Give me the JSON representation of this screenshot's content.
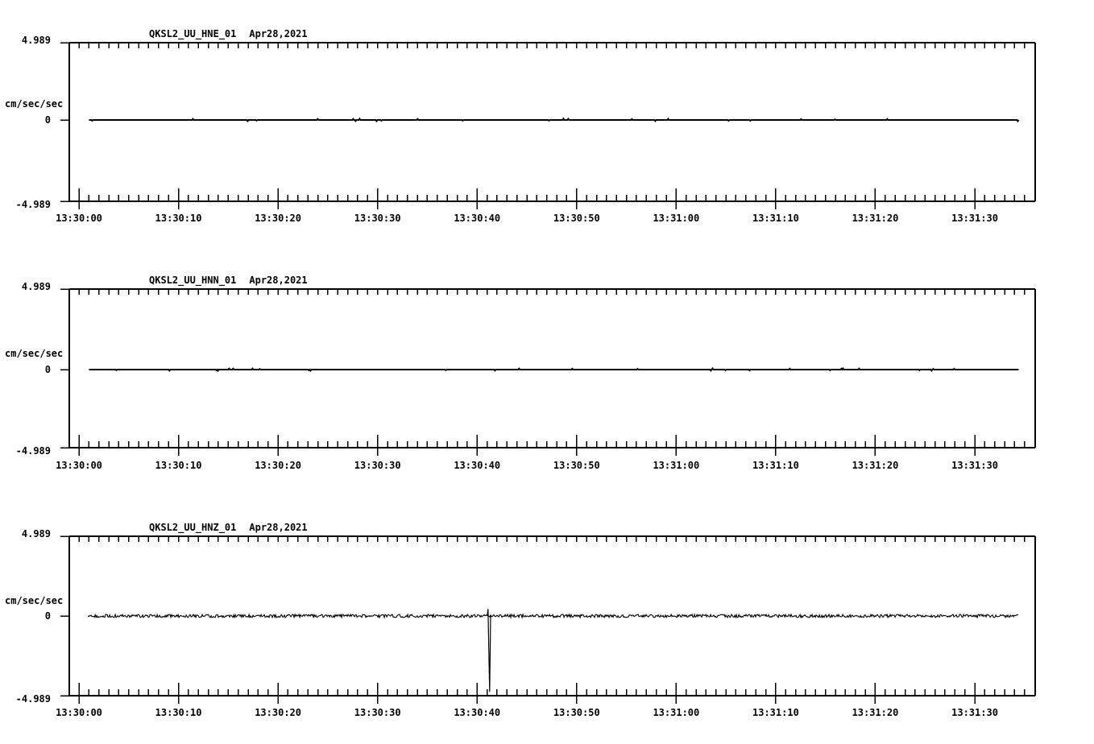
{
  "page": {
    "background_color": "#ffffff",
    "ink_color": "#000000"
  },
  "chart_data": [
    {
      "type": "line",
      "station_channel": "QKSL2_UU_HNE_01",
      "date": "Apr28,2021",
      "y_axis": {
        "unit": "cm/sec/sec",
        "max_label": "4.989",
        "zero_label": "0",
        "min_label": "-4.989",
        "ylim": [
          -4.989,
          4.989
        ]
      },
      "x_axis": {
        "tick_labels": [
          "13:30:00",
          "13:30:10",
          "13:30:20",
          "13:30:30",
          "13:30:40",
          "13:30:50",
          "13:31:00",
          "13:31:10",
          "13:31:20",
          "13:31:30"
        ],
        "minor_step_s": 1,
        "major_step_s": 10,
        "range_s": [
          -1,
          96.1
        ]
      },
      "trace": {
        "baseline_value": 0,
        "start_s": 1.0,
        "end_s": 94.4,
        "noise_amp": 0.01,
        "blip_prob": 0.02,
        "spikes": []
      }
    },
    {
      "type": "line",
      "station_channel": "QKSL2_UU_HNN_01",
      "date": "Apr28,2021",
      "y_axis": {
        "unit": "cm/sec/sec",
        "max_label": "4.989",
        "zero_label": "0",
        "min_label": "-4.989",
        "ylim": [
          -4.989,
          4.989
        ]
      },
      "x_axis": {
        "tick_labels": [
          "13:30:00",
          "13:30:10",
          "13:30:20",
          "13:30:30",
          "13:30:40",
          "13:30:50",
          "13:31:00",
          "13:31:10",
          "13:31:20",
          "13:31:30"
        ],
        "minor_step_s": 1,
        "major_step_s": 10,
        "range_s": [
          -1,
          96.1
        ]
      },
      "trace": {
        "baseline_value": 0,
        "start_s": 1.0,
        "end_s": 94.4,
        "noise_amp": 0.01,
        "blip_prob": 0.03,
        "spikes": []
      }
    },
    {
      "type": "line",
      "station_channel": "QKSL2_UU_HNZ_01",
      "date": "Apr28,2021",
      "y_axis": {
        "unit": "cm/sec/sec",
        "max_label": "4.989",
        "zero_label": "0",
        "min_label": "-4.989",
        "ylim": [
          -4.989,
          4.989
        ]
      },
      "x_axis": {
        "tick_labels": [
          "13:30:00",
          "13:30:10",
          "13:30:20",
          "13:30:30",
          "13:30:40",
          "13:30:50",
          "13:31:00",
          "13:31:10",
          "13:31:20",
          "13:31:30"
        ],
        "minor_step_s": 1,
        "major_step_s": 10,
        "range_s": [
          -1,
          96.1
        ]
      },
      "trace": {
        "baseline_value": 0,
        "start_s": 0.9,
        "end_s": 94.4,
        "noise_amp": 0.07,
        "blip_prob": 1,
        "spikes": [
          {
            "t_s": 41.1,
            "peak_top": 0.45,
            "peak_bottom": -4.9
          }
        ]
      }
    }
  ]
}
